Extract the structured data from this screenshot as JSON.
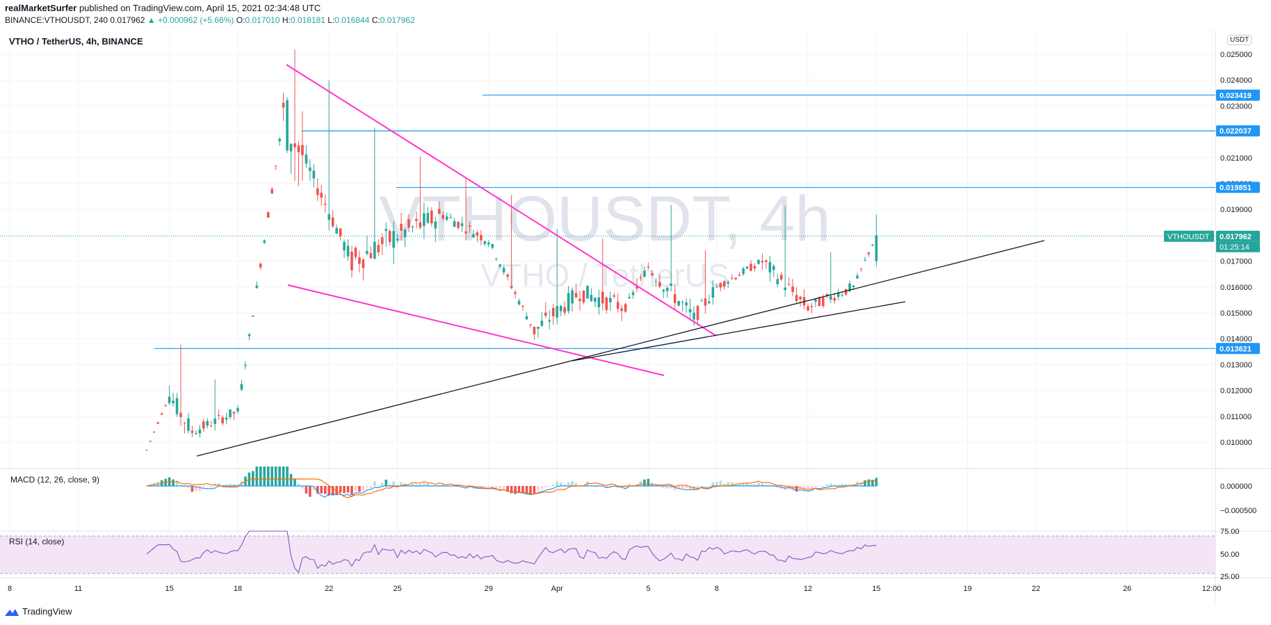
{
  "header": {
    "author": "realMarketSurfer",
    "published": "published on TradingView.com, April 15, 2021 02:34:48 UTC",
    "symbol": "BINANCE:VTHOUSDT, 240",
    "last": "0.017962",
    "change": "▲ +0.000962 (+5.66%)",
    "o_label": "O:",
    "o": "0.017010",
    "h_label": "H:",
    "h": "0.018181",
    "l_label": "L:",
    "l": "0.016844",
    "c_label": "C:",
    "c": "0.017962"
  },
  "title": "VTHO / TetherUS, 4h, BINANCE",
  "watermark_main": "VTHOUSDT, 4h",
  "watermark_sub": "VTHO / TetherUS",
  "currency_button": "USDT",
  "macd_label": "MACD (12, 26, close, 9)",
  "rsi_label": "RSI (14, close)",
  "footer": {
    "brand": "TradingView"
  },
  "colors": {
    "up": "#26a69a",
    "down": "#ef5350",
    "pink": "#ff33cc",
    "hline": "#2196f3",
    "rsi_bg": "#f3e5f5",
    "rsi_line": "#7e57c2",
    "macd": "#2196f3",
    "signal": "#ff6d00"
  },
  "chart_data": {
    "type": "candlestick",
    "timeframe": "4h",
    "price_axis": [
      "0.025000",
      "0.024000",
      "0.023000",
      "0.022000",
      "0.021000",
      "0.020000",
      "0.019000",
      "0.018000",
      "0.017000",
      "0.016000",
      "0.015000",
      "0.014000",
      "0.013000",
      "0.012000",
      "0.011000",
      "0.010000"
    ],
    "price_labels": [
      {
        "value": "0.023419",
        "color": "#2196f3"
      },
      {
        "value": "0.022037",
        "color": "#2196f3"
      },
      {
        "value": "0.019851",
        "color": "#2196f3"
      },
      {
        "value": "0.017962",
        "color": "#26a69a"
      },
      {
        "value": "0.013621",
        "color": "#2196f3"
      }
    ],
    "countdown": "01:25:14",
    "last_symbol_tag": "VTHOUSDT",
    "x_ticks": [
      "8",
      "11",
      "15",
      "18",
      "22",
      "25",
      "29",
      "Apr",
      "5",
      "8",
      "12",
      "15",
      "19",
      "22",
      "26",
      "12:00"
    ],
    "macd_axis": [
      "0.000000",
      "−0.000500"
    ],
    "rsi_axis": [
      "75.00",
      "50.00",
      "25.00"
    ],
    "horizontal_levels": [
      0.023419,
      0.022037,
      0.019851,
      0.013621
    ],
    "ohlc_approx": [
      {
        "t": "Mar 14",
        "o": 0.0096,
        "h": 0.0099,
        "l": 0.0094,
        "c": 0.0097
      },
      {
        "t": "Mar 15",
        "o": 0.0097,
        "h": 0.0137,
        "l": 0.0095,
        "c": 0.0118
      },
      {
        "t": "Mar 16",
        "o": 0.0118,
        "h": 0.0122,
        "l": 0.0098,
        "c": 0.0104
      },
      {
        "t": "Mar 18",
        "o": 0.0104,
        "h": 0.0119,
        "l": 0.0101,
        "c": 0.0112
      },
      {
        "t": "Mar 20",
        "o": 0.0112,
        "h": 0.0244,
        "l": 0.011,
        "c": 0.0226
      },
      {
        "t": "Mar 21",
        "o": 0.0226,
        "h": 0.0238,
        "l": 0.02,
        "c": 0.0208
      },
      {
        "t": "Mar 23",
        "o": 0.0208,
        "h": 0.0216,
        "l": 0.0155,
        "c": 0.017
      },
      {
        "t": "Mar 25",
        "o": 0.017,
        "h": 0.021,
        "l": 0.016,
        "c": 0.018
      },
      {
        "t": "Mar 27",
        "o": 0.018,
        "h": 0.02,
        "l": 0.0175,
        "c": 0.0188
      },
      {
        "t": "Mar 29",
        "o": 0.0188,
        "h": 0.0194,
        "l": 0.0175,
        "c": 0.0178
      },
      {
        "t": "Mar 31",
        "o": 0.0178,
        "h": 0.018,
        "l": 0.014,
        "c": 0.0143
      },
      {
        "t": "Apr 2",
        "o": 0.0143,
        "h": 0.0175,
        "l": 0.0136,
        "c": 0.0158
      },
      {
        "t": "Apr 4",
        "o": 0.0158,
        "h": 0.0162,
        "l": 0.0145,
        "c": 0.0152
      },
      {
        "t": "Apr 5",
        "o": 0.0152,
        "h": 0.019,
        "l": 0.015,
        "c": 0.0168
      },
      {
        "t": "Apr 7",
        "o": 0.0168,
        "h": 0.0172,
        "l": 0.0141,
        "c": 0.0148
      },
      {
        "t": "Apr 8",
        "o": 0.0148,
        "h": 0.0162,
        "l": 0.0145,
        "c": 0.016
      },
      {
        "t": "Apr 10",
        "o": 0.016,
        "h": 0.0189,
        "l": 0.0155,
        "c": 0.017
      },
      {
        "t": "Apr 12",
        "o": 0.017,
        "h": 0.0172,
        "l": 0.0148,
        "c": 0.0152
      },
      {
        "t": "Apr 14",
        "o": 0.0152,
        "h": 0.0162,
        "l": 0.015,
        "c": 0.016
      },
      {
        "t": "Apr 15",
        "o": 0.017,
        "h": 0.0188,
        "l": 0.0168,
        "c": 0.018
      }
    ]
  }
}
